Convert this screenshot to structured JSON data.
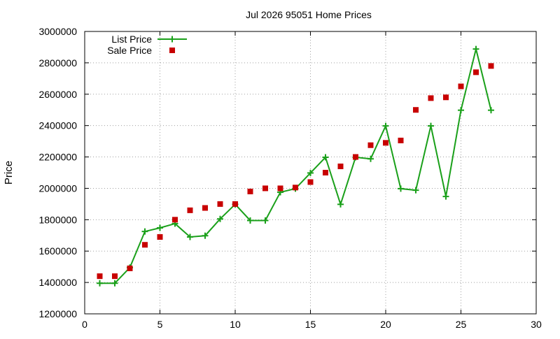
{
  "chart_data": {
    "type": "line",
    "title": "Jul 2026 95051 Home Prices",
    "xlabel": "",
    "ylabel": "Price",
    "xlim": [
      0,
      30
    ],
    "ylim": [
      1200000,
      3000000
    ],
    "xticks": [
      0,
      5,
      10,
      15,
      20,
      25,
      30
    ],
    "yticks": [
      1200000,
      1400000,
      1600000,
      1800000,
      2000000,
      2200000,
      2400000,
      2600000,
      2800000,
      3000000
    ],
    "grid": true,
    "legend_position": "top-left",
    "series": [
      {
        "name": "List Price",
        "style": "line-plus",
        "color": "#1aa01a",
        "points": [
          [
            1,
            1395000
          ],
          [
            2,
            1395000
          ],
          [
            3,
            1495000
          ],
          [
            4,
            1725000
          ],
          [
            5,
            1748000
          ],
          [
            6,
            1775000
          ],
          [
            7,
            1690000
          ],
          [
            8,
            1698000
          ],
          [
            9,
            1805000
          ],
          [
            10,
            1898000
          ],
          [
            11,
            1795000
          ],
          [
            12,
            1795000
          ],
          [
            13,
            1975000
          ],
          [
            14,
            1998000
          ],
          [
            15,
            2098000
          ],
          [
            16,
            2198000
          ],
          [
            17,
            1898000
          ],
          [
            18,
            2198000
          ],
          [
            19,
            2188000
          ],
          [
            20,
            2398000
          ],
          [
            21,
            1998000
          ],
          [
            22,
            1988000
          ],
          [
            23,
            2398000
          ],
          [
            24,
            1948000
          ],
          [
            25,
            2498000
          ],
          [
            26,
            2888000
          ],
          [
            27,
            2498000
          ]
        ]
      },
      {
        "name": "Sale Price",
        "style": "square-points",
        "color": "#c80000",
        "points": [
          [
            1,
            1440000
          ],
          [
            2,
            1440000
          ],
          [
            3,
            1490000
          ],
          [
            4,
            1640000
          ],
          [
            5,
            1690000
          ],
          [
            6,
            1800000
          ],
          [
            7,
            1860000
          ],
          [
            8,
            1875000
          ],
          [
            9,
            1900000
          ],
          [
            10,
            1900000
          ],
          [
            11,
            1980000
          ],
          [
            12,
            2000000
          ],
          [
            13,
            2000000
          ],
          [
            14,
            2005000
          ],
          [
            15,
            2040000
          ],
          [
            16,
            2100000
          ],
          [
            17,
            2140000
          ],
          [
            18,
            2200000
          ],
          [
            19,
            2275000
          ],
          [
            20,
            2290000
          ],
          [
            21,
            2305000
          ],
          [
            22,
            2500000
          ],
          [
            23,
            2575000
          ],
          [
            24,
            2580000
          ],
          [
            25,
            2650000
          ],
          [
            26,
            2740000
          ],
          [
            27,
            2780000
          ]
        ]
      }
    ]
  }
}
